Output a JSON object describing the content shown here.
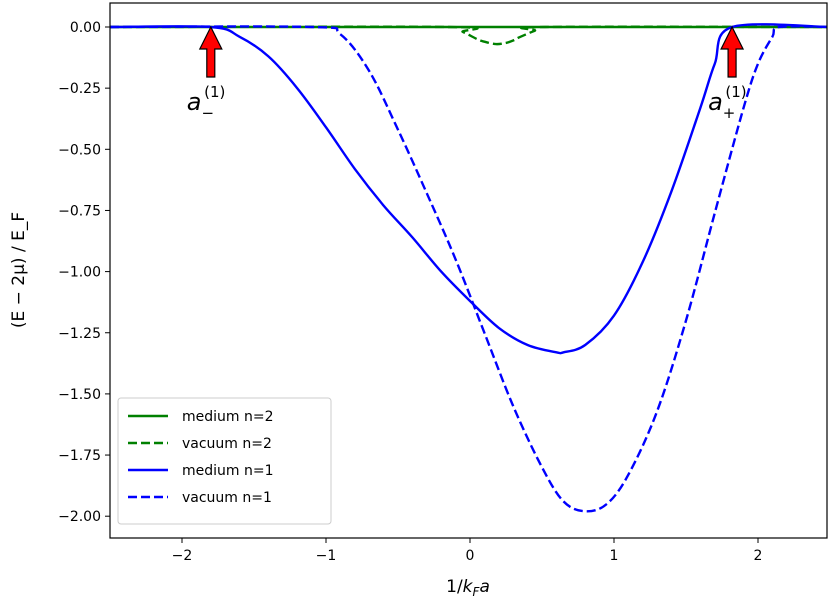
{
  "chart_data": {
    "type": "line",
    "xlabel": {
      "pre": "1/",
      "k": "k",
      "sub": "F",
      "a": "a"
    },
    "ylabel": "(E − 2μ) / E_F",
    "xlim": [
      -2.5,
      2.5
    ],
    "ylim": [
      -2.08,
      0.1
    ],
    "xticks": [
      -2,
      -1,
      0,
      1,
      2
    ],
    "xtick_labels": [
      "−2",
      "−1",
      "0",
      "1",
      "2"
    ],
    "yticks": [
      0.0,
      -0.25,
      -0.5,
      -0.75,
      -1.0,
      -1.25,
      -1.5,
      -1.75,
      -2.0
    ],
    "ytick_labels": [
      "0.00",
      "−0.25",
      "−0.50",
      "−0.75",
      "−1.00",
      "−1.25",
      "−1.50",
      "−1.75",
      "−2.00"
    ],
    "grid": false,
    "legend_position": "lower-left",
    "series": [
      {
        "name": "medium n=2",
        "color": "#008000",
        "dash": "solid",
        "x": [
          -2.5,
          2.5
        ],
        "y": [
          0.0,
          0.0
        ]
      },
      {
        "name": "vacuum n=2",
        "color": "#008000",
        "dash": "dashed",
        "x": [
          -2.5,
          -0.15,
          -0.05,
          0.05,
          0.1,
          0.18,
          0.25,
          0.3,
          0.35,
          0.45,
          0.52,
          2.5
        ],
        "y": [
          0.0,
          0.0,
          -0.02,
          -0.05,
          -0.06,
          -0.07,
          -0.065,
          -0.055,
          -0.04,
          -0.015,
          0.0,
          0.0
        ]
      },
      {
        "name": "medium n=1",
        "color": "#0000ff",
        "dash": "solid",
        "x": [
          -2.5,
          -1.8,
          -1.6,
          -1.4,
          -1.2,
          -1.0,
          -0.8,
          -0.6,
          -0.4,
          -0.2,
          0.0,
          0.2,
          0.4,
          0.6,
          0.65,
          0.8,
          1.0,
          1.2,
          1.4,
          1.6,
          1.7,
          1.82,
          2.5
        ],
        "y": [
          0.0,
          0.0,
          -0.04,
          -0.12,
          -0.25,
          -0.41,
          -0.58,
          -0.73,
          -0.86,
          -1.0,
          -1.12,
          -1.23,
          -1.3,
          -1.33,
          -1.33,
          -1.3,
          -1.18,
          -0.96,
          -0.67,
          -0.33,
          -0.15,
          0.0,
          0.0
        ]
      },
      {
        "name": "vacuum n=1",
        "color": "#0000ff",
        "dash": "dashed",
        "x": [
          -2.5,
          -1.1,
          -0.9,
          -0.7,
          -0.5,
          -0.3,
          -0.1,
          0.1,
          0.3,
          0.5,
          0.65,
          0.8,
          0.95,
          1.1,
          1.3,
          1.5,
          1.7,
          1.9,
          2.0,
          2.1,
          2.15,
          2.5
        ],
        "y": [
          0.0,
          0.0,
          -0.03,
          -0.18,
          -0.42,
          -0.68,
          -0.95,
          -1.25,
          -1.55,
          -1.8,
          -1.94,
          -1.98,
          -1.95,
          -1.83,
          -1.57,
          -1.2,
          -0.76,
          -0.33,
          -0.15,
          -0.04,
          0.0,
          0.0
        ]
      }
    ],
    "annotations": [
      {
        "label": "a",
        "sub": "−",
        "sup": "(1)",
        "x": -1.8,
        "arrow_color": "#ff0000"
      },
      {
        "label": "a",
        "sub": "+",
        "sup": "(1)",
        "x": 1.82,
        "arrow_color": "#ff0000"
      }
    ]
  }
}
